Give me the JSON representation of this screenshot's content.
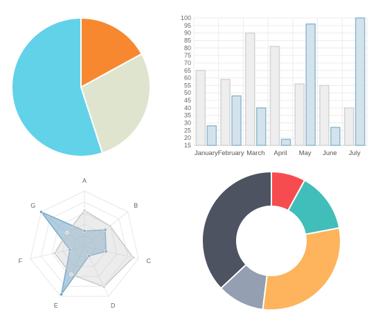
{
  "chart_data": [
    {
      "type": "pie",
      "slices": [
        {
          "value": 17,
          "color": "#F7882F"
        },
        {
          "value": 28,
          "color": "#DFE4CE"
        },
        {
          "value": 55,
          "color": "#62D2E9"
        }
      ]
    },
    {
      "type": "bar",
      "categories": [
        "January",
        "February",
        "March",
        "April",
        "May",
        "June",
        "July"
      ],
      "ylim": [
        15,
        100
      ],
      "yticks": [
        15,
        20,
        25,
        30,
        35,
        40,
        45,
        50,
        55,
        60,
        65,
        70,
        75,
        80,
        85,
        90,
        95,
        100
      ],
      "grid": true,
      "series": [
        {
          "values": [
            65,
            59,
            90,
            81,
            56,
            55,
            40
          ],
          "fill": "#eeeeee",
          "stroke": "#d4d4d4"
        },
        {
          "values": [
            28,
            48,
            40,
            19,
            96,
            27,
            100
          ],
          "fill": "#d3e3ec",
          "stroke": "#8fb8cf"
        }
      ]
    },
    {
      "type": "radar",
      "axes": [
        "A",
        "B",
        "C",
        "D",
        "E",
        "F",
        "G"
      ],
      "max": 100,
      "grid_levels": 5,
      "series": [
        {
          "values": [
            28,
            48,
            40,
            19,
            96,
            27,
            100
          ],
          "fill": "rgba(116,165,200,0.55)",
          "stroke": "#7aa9c9",
          "point": "#6b9fc4"
        },
        {
          "values": [
            65,
            59,
            90,
            81,
            56,
            55,
            40
          ],
          "fill": "rgba(200,200,200,0.35)",
          "stroke": "#c8c8c8",
          "point": "#cfcfcf"
        }
      ]
    },
    {
      "type": "doughnut",
      "slices": [
        {
          "value": 8,
          "color": "#F74C4F"
        },
        {
          "value": 14,
          "color": "#41BEB9"
        },
        {
          "value": 30,
          "color": "#FDB45C"
        },
        {
          "value": 11,
          "color": "#949FB1"
        },
        {
          "value": 37,
          "color": "#4D5360"
        }
      ]
    }
  ]
}
